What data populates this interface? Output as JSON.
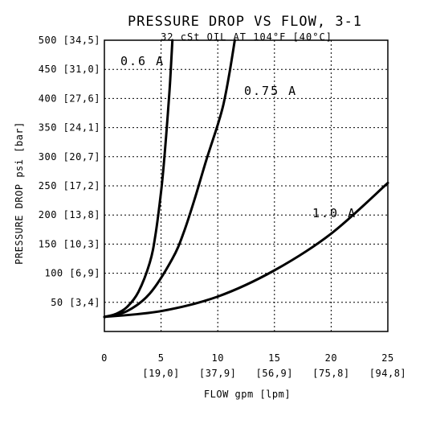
{
  "chart_data": {
    "type": "line",
    "title": "PRESSURE DROP VS FLOW, 3-1",
    "subtitle": "32 cSt OIL AT 104°F [40°C]",
    "xlabel": "FLOW gpm [lpm]",
    "ylabel": "PRESSURE DROP psi [bar]",
    "xlim": [
      0,
      25
    ],
    "ylim": [
      0,
      500
    ],
    "grid": true,
    "x_ticks": [
      {
        "value": 0,
        "label": "0",
        "sub": ""
      },
      {
        "value": 5,
        "label": "5",
        "sub": "[19,0]"
      },
      {
        "value": 10,
        "label": "10",
        "sub": "[37,9]"
      },
      {
        "value": 15,
        "label": "15",
        "sub": "[56,9]"
      },
      {
        "value": 20,
        "label": "20",
        "sub": "[75,8]"
      },
      {
        "value": 25,
        "label": "25",
        "sub": "[94,8]"
      }
    ],
    "y_ticks": [
      {
        "value": 50,
        "label": "50 [3,4]"
      },
      {
        "value": 100,
        "label": "100 [6,9]"
      },
      {
        "value": 150,
        "label": "150 [10,3]"
      },
      {
        "value": 200,
        "label": "200 [13,8]"
      },
      {
        "value": 250,
        "label": "250 [17,2]"
      },
      {
        "value": 300,
        "label": "300 [20,7]"
      },
      {
        "value": 350,
        "label": "350 [24,1]"
      },
      {
        "value": 400,
        "label": "400 [27,6]"
      },
      {
        "value": 450,
        "label": "450 [31,0]"
      },
      {
        "value": 500,
        "label": "500 [34,5]"
      }
    ],
    "series": [
      {
        "name": "0.6 A",
        "x": [
          0,
          1,
          2,
          3,
          4,
          4.5,
          5,
          5.3,
          5.6,
          5.8,
          6.0
        ],
        "y": [
          25,
          30,
          42,
          68,
          118,
          165,
          240,
          300,
          375,
          430,
          500
        ]
      },
      {
        "name": "0.75 A",
        "x": [
          0,
          2,
          4,
          6,
          7,
          8,
          9,
          10,
          10.5,
          11,
          11.5
        ],
        "y": [
          25,
          35,
          65,
          125,
          170,
          230,
          295,
          355,
          390,
          440,
          500
        ]
      },
      {
        "name": "1.0 A",
        "x": [
          0,
          5,
          10,
          15,
          20,
          25
        ],
        "y": [
          25,
          35,
          60,
          105,
          168,
          255
        ]
      }
    ]
  }
}
